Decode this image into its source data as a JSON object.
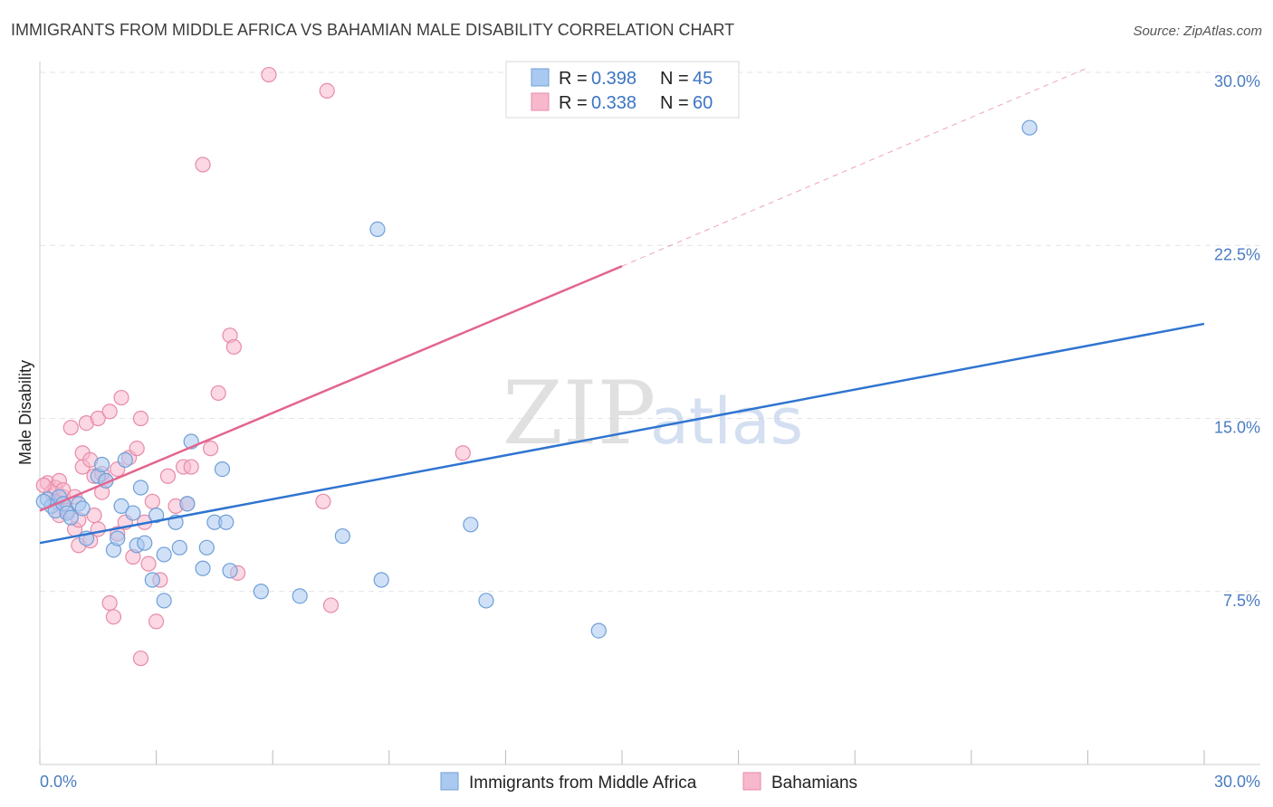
{
  "title": "IMMIGRANTS FROM MIDDLE AFRICA VS BAHAMIAN MALE DISABILITY CORRELATION CHART",
  "source": "Source: ZipAtlas.com",
  "watermark": {
    "zip": "ZIP",
    "atlas": "atlas"
  },
  "chart_data": {
    "type": "scatter",
    "title": "IMMIGRANTS FROM MIDDLE AFRICA VS BAHAMIAN MALE DISABILITY CORRELATION CHART",
    "xlabel": "",
    "ylabel": "Male Disability",
    "xlim": [
      0,
      30
    ],
    "ylim": [
      0,
      31
    ],
    "x_tick_labels": [
      "0.0%",
      "30.0%"
    ],
    "y_ticks": [
      7.5,
      15.0,
      22.5,
      30.0
    ],
    "y_tick_labels": [
      "7.5%",
      "15.0%",
      "22.5%",
      "30.0%"
    ],
    "legend": {
      "r_label": "R = ",
      "n_label": "N = ",
      "entries": [
        {
          "r": "0.398",
          "n": "45"
        },
        {
          "r": "0.338",
          "n": "60"
        }
      ]
    },
    "colors": {
      "blue_fill": "#a9c9f0",
      "blue_stroke": "#6f9fd8",
      "blue_line": "#2f74d0",
      "pink_fill": "#f7b8cc",
      "pink_stroke": "#e88aa8",
      "pink_line": "#e3658e",
      "grid": "#e4e4e4"
    },
    "series": [
      {
        "name": "Immigrants from Middle Africa",
        "trend": {
          "x0": 0,
          "y0": 9.6,
          "x1": 30,
          "y1": 19.1
        },
        "points": [
          [
            0.2,
            11.5
          ],
          [
            0.3,
            11.2
          ],
          [
            0.4,
            11.0
          ],
          [
            0.5,
            11.6
          ],
          [
            0.6,
            11.3
          ],
          [
            0.7,
            10.9
          ],
          [
            0.8,
            10.7
          ],
          [
            1.0,
            11.3
          ],
          [
            1.1,
            11.1
          ],
          [
            1.2,
            9.8
          ],
          [
            1.5,
            12.5
          ],
          [
            1.6,
            13.0
          ],
          [
            1.7,
            12.3
          ],
          [
            1.9,
            9.3
          ],
          [
            2.0,
            9.8
          ],
          [
            2.1,
            11.2
          ],
          [
            2.2,
            13.2
          ],
          [
            2.4,
            10.9
          ],
          [
            2.5,
            9.5
          ],
          [
            2.6,
            12.0
          ],
          [
            2.7,
            9.6
          ],
          [
            2.9,
            8.0
          ],
          [
            3.0,
            10.8
          ],
          [
            3.2,
            9.1
          ],
          [
            3.2,
            7.1
          ],
          [
            3.5,
            10.5
          ],
          [
            3.6,
            9.4
          ],
          [
            3.8,
            11.3
          ],
          [
            3.9,
            14.0
          ],
          [
            4.2,
            8.5
          ],
          [
            4.3,
            9.4
          ],
          [
            4.5,
            10.5
          ],
          [
            4.7,
            12.8
          ],
          [
            4.8,
            10.5
          ],
          [
            4.9,
            8.4
          ],
          [
            5.7,
            7.5
          ],
          [
            6.7,
            7.3
          ],
          [
            7.8,
            9.9
          ],
          [
            8.7,
            23.2
          ],
          [
            8.8,
            8.0
          ],
          [
            11.1,
            10.4
          ],
          [
            11.5,
            7.1
          ],
          [
            14.4,
            5.8
          ],
          [
            25.5,
            27.6
          ],
          [
            0.1,
            11.4
          ]
        ]
      },
      {
        "name": "Bahamians",
        "trend": {
          "x0": 0,
          "y0": 11.0,
          "x1": 15.0,
          "y1": 21.6
        },
        "trend_ext": {
          "x0": 15.0,
          "y0": 21.6,
          "x1": 27.0,
          "y1": 30.2
        },
        "points": [
          [
            0.2,
            12.2
          ],
          [
            0.3,
            11.8
          ],
          [
            0.4,
            12.0
          ],
          [
            0.5,
            12.3
          ],
          [
            0.6,
            11.6
          ],
          [
            0.6,
            11.9
          ],
          [
            0.7,
            11.0
          ],
          [
            0.8,
            14.6
          ],
          [
            0.9,
            10.2
          ],
          [
            1.0,
            9.5
          ],
          [
            1.0,
            10.6
          ],
          [
            1.1,
            13.5
          ],
          [
            1.1,
            12.9
          ],
          [
            1.2,
            14.8
          ],
          [
            1.3,
            9.7
          ],
          [
            1.4,
            10.8
          ],
          [
            1.4,
            12.5
          ],
          [
            1.5,
            15.0
          ],
          [
            1.5,
            10.2
          ],
          [
            1.6,
            11.8
          ],
          [
            1.7,
            12.3
          ],
          [
            1.8,
            7.0
          ],
          [
            1.8,
            15.3
          ],
          [
            1.9,
            6.4
          ],
          [
            2.0,
            12.8
          ],
          [
            2.1,
            15.9
          ],
          [
            2.2,
            10.5
          ],
          [
            2.3,
            13.3
          ],
          [
            2.4,
            9.0
          ],
          [
            2.5,
            13.7
          ],
          [
            2.6,
            15.0
          ],
          [
            2.6,
            4.6
          ],
          [
            2.8,
            8.7
          ],
          [
            2.9,
            11.4
          ],
          [
            3.0,
            6.2
          ],
          [
            3.1,
            8.0
          ],
          [
            3.3,
            12.5
          ],
          [
            3.7,
            12.9
          ],
          [
            3.8,
            11.3
          ],
          [
            3.9,
            12.9
          ],
          [
            4.2,
            26.0
          ],
          [
            4.4,
            13.7
          ],
          [
            4.6,
            16.1
          ],
          [
            4.9,
            18.6
          ],
          [
            5.0,
            18.1
          ],
          [
            5.1,
            8.3
          ],
          [
            5.9,
            29.9
          ],
          [
            7.3,
            11.4
          ],
          [
            7.4,
            29.2
          ],
          [
            7.5,
            6.9
          ],
          [
            10.9,
            13.5
          ],
          [
            0.1,
            12.1
          ],
          [
            0.4,
            11.4
          ],
          [
            0.9,
            11.6
          ],
          [
            1.3,
            13.2
          ],
          [
            2.0,
            10.0
          ],
          [
            0.5,
            10.8
          ],
          [
            1.6,
            12.6
          ],
          [
            2.7,
            10.5
          ],
          [
            3.5,
            11.2
          ]
        ]
      }
    ]
  }
}
